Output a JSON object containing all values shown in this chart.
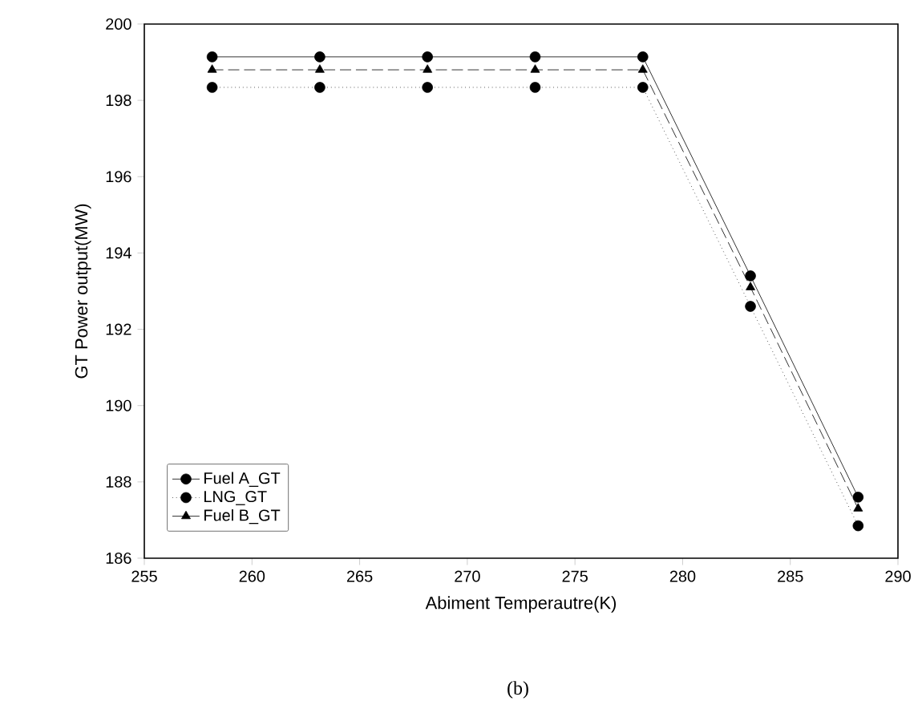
{
  "chart_data": {
    "type": "line",
    "xlabel": "Abiment Temperautre(K)",
    "ylabel": "GT Power output(MW)",
    "x": [
      258.15,
      263.15,
      268.15,
      273.15,
      278.15,
      283.15,
      288.15
    ],
    "series": [
      {
        "name": "Fuel A_GT",
        "color": "#000000",
        "marker": "circle",
        "line_style": "solid",
        "values": [
          199.14,
          199.14,
          199.14,
          199.14,
          199.14,
          193.4,
          187.6
        ]
      },
      {
        "name": "LNG_GT",
        "color": "#000000",
        "marker": "circle",
        "line_style": "dotted",
        "values": [
          198.34,
          198.34,
          198.34,
          198.34,
          198.34,
          192.6,
          186.85
        ]
      },
      {
        "name": "Fuel B_GT",
        "color": "#000000",
        "marker": "triangle",
        "line_style": "dashed",
        "values": [
          198.8,
          198.8,
          198.8,
          198.8,
          198.8,
          193.1,
          187.3
        ]
      }
    ],
    "xlim": [
      255,
      290
    ],
    "xticks": [
      255,
      260,
      265,
      270,
      275,
      280,
      285,
      290
    ],
    "ylim": [
      186,
      200
    ],
    "yticks": [
      186,
      188,
      190,
      192,
      194,
      196,
      198,
      200
    ],
    "grid": false,
    "legend": "bottom left",
    "annotations": [
      "(b)"
    ]
  }
}
